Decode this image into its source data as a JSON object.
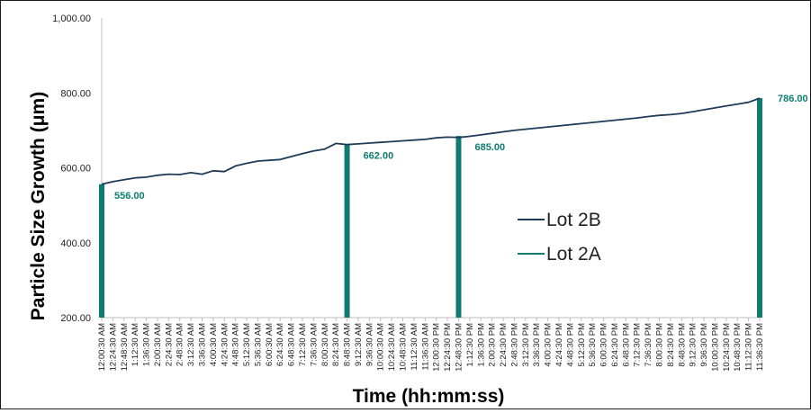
{
  "chart_data": {
    "type": "line",
    "title": "",
    "xlabel": "Time  (hh:mm:ss)",
    "ylabel": "Particle Size Growth (μm)",
    "ylim": [
      200,
      1000
    ],
    "yticks": [
      "200.00",
      "400.00",
      "600.00",
      "800.00",
      "1,000.00"
    ],
    "ytick_values": [
      200,
      400,
      600,
      800,
      1000
    ],
    "x_categories": [
      "12:00:30 AM",
      "12:24:30 AM",
      "12:48:30 AM",
      "1:12:30 AM",
      "1:36:30 AM",
      "2:00:30 AM",
      "2:24:30 AM",
      "2:48:30 AM",
      "3:12:30 AM",
      "3:36:30 AM",
      "4:00:30 AM",
      "4:24:30 AM",
      "4:48:30 AM",
      "5:12:30 AM",
      "5:36:30 AM",
      "6:00:30 AM",
      "6:24:30 AM",
      "6:48:30 AM",
      "7:12:30 AM",
      "7:36:30 AM",
      "8:00:30 AM",
      "8:24:30 AM",
      "8:48:30 AM",
      "9:12:30 AM",
      "9:36:30 AM",
      "10:00:30 AM",
      "10:24:30 AM",
      "10:48:30 AM",
      "11:12:30 AM",
      "11:36:30 AM",
      "12:00:30 PM",
      "12:24:30 PM",
      "12:48:30 PM",
      "1:12:30 PM",
      "1:36:30 PM",
      "2:00:30 PM",
      "2:24:30 PM",
      "2:48:30 PM",
      "3:12:30 PM",
      "3:36:30 PM",
      "4:00:30 PM",
      "4:24:30 PM",
      "4:48:30 PM",
      "5:12:30 PM",
      "5:36:30 PM",
      "6:00:30 PM",
      "6:24:30 PM",
      "6:48:30 PM",
      "7:12:30 PM",
      "7:36:30 PM",
      "8:00:30 PM",
      "8:24:30 PM",
      "8:48:30 PM",
      "9:12:30 PM",
      "9:36:30 PM",
      "10:00:30 PM",
      "10:24:30 PM",
      "10:48:30 PM",
      "11:12:30 PM",
      "11:36:30 PM"
    ],
    "series": [
      {
        "name": "Lot 2B",
        "kind": "line",
        "color": "#1f3b5a",
        "points": [
          [
            "12:00:30 AM",
            556
          ],
          [
            "12:24:30 AM",
            563
          ],
          [
            "12:48:30 AM",
            568
          ],
          [
            "1:12:30 AM",
            573
          ],
          [
            "1:36:30 AM",
            575
          ],
          [
            "2:00:30 AM",
            580
          ],
          [
            "2:24:30 AM",
            583
          ],
          [
            "2:48:30 AM",
            582
          ],
          [
            "3:12:30 AM",
            587
          ],
          [
            "3:36:30 AM",
            583
          ],
          [
            "4:00:30 AM",
            592
          ],
          [
            "4:24:30 AM",
            590
          ],
          [
            "4:48:30 AM",
            605
          ],
          [
            "5:12:30 AM",
            612
          ],
          [
            "5:36:30 AM",
            618
          ],
          [
            "6:00:30 AM",
            620
          ],
          [
            "6:24:30 AM",
            622
          ],
          [
            "6:48:30 AM",
            630
          ],
          [
            "7:12:30 AM",
            638
          ],
          [
            "7:36:30 AM",
            645
          ],
          [
            "8:00:30 AM",
            650
          ],
          [
            "8:24:30 AM",
            665
          ],
          [
            "8:48:30 AM",
            662
          ],
          [
            "9:12:30 AM",
            664
          ],
          [
            "9:36:30 AM",
            666
          ],
          [
            "10:00:30 AM",
            668
          ],
          [
            "10:24:30 AM",
            670
          ],
          [
            "10:48:30 AM",
            672
          ],
          [
            "11:12:30 AM",
            674
          ],
          [
            "11:36:30 AM",
            676
          ],
          [
            "12:00:30 PM",
            680
          ],
          [
            "12:24:30 PM",
            682
          ],
          [
            "12:48:30 PM",
            681
          ],
          [
            "1:12:30 PM",
            684
          ],
          [
            "1:36:30 PM",
            688
          ],
          [
            "2:00:30 PM",
            692
          ],
          [
            "2:24:30 PM",
            696
          ],
          [
            "2:48:30 PM",
            700
          ],
          [
            "3:12:30 PM",
            703
          ],
          [
            "3:36:30 PM",
            706
          ],
          [
            "4:00:30 PM",
            709
          ],
          [
            "4:24:30 PM",
            712
          ],
          [
            "4:48:30 PM",
            715
          ],
          [
            "5:12:30 PM",
            718
          ],
          [
            "5:36:30 PM",
            721
          ],
          [
            "6:00:30 PM",
            724
          ],
          [
            "6:24:30 PM",
            727
          ],
          [
            "6:48:30 PM",
            730
          ],
          [
            "7:12:30 PM",
            733
          ],
          [
            "7:36:30 PM",
            737
          ],
          [
            "8:00:30 PM",
            740
          ],
          [
            "8:24:30 PM",
            742
          ],
          [
            "8:48:30 PM",
            745
          ],
          [
            "9:12:30 PM",
            750
          ],
          [
            "9:36:30 PM",
            755
          ],
          [
            "10:00:30 PM",
            760
          ],
          [
            "10:24:30 PM",
            765
          ],
          [
            "10:48:30 PM",
            770
          ],
          [
            "11:12:30 PM",
            775
          ],
          [
            "11:36:30 PM",
            786
          ]
        ]
      },
      {
        "name": "Lot 2A",
        "kind": "bars",
        "color": "#0e7c72",
        "points": [
          [
            "12:00:30 AM",
            556
          ],
          [
            "8:48:30 AM",
            662
          ],
          [
            "12:48:30 PM",
            685
          ],
          [
            "11:36:30 PM",
            786
          ]
        ],
        "labels": [
          "556.00",
          "662.00",
          "685.00",
          "786.00"
        ]
      }
    ],
    "legend": {
      "position": "right",
      "items": [
        "Lot 2B",
        "Lot 2A"
      ]
    },
    "grid": false
  }
}
